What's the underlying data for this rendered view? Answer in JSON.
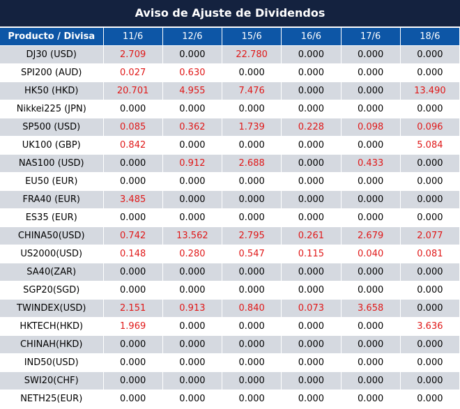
{
  "title": "Aviso de Ajuste de Dividendos",
  "header": {
    "product_label": "Producto / Divisa",
    "dates": [
      "11/6",
      "12/6",
      "15/6",
      "16/6",
      "17/6",
      "18/6"
    ]
  },
  "colors": {
    "title_bg": "#14223f",
    "header_bg": "#0d56a6",
    "stripe": "#d5d9e0",
    "positive": "#e01818"
  },
  "rows": [
    {
      "name": "DJ30 (USD)",
      "values": [
        "2.709",
        "0.000",
        "22.780",
        "0.000",
        "0.000",
        "0.000"
      ]
    },
    {
      "name": "SPI200 (AUD)",
      "values": [
        "0.027",
        "0.630",
        "0.000",
        "0.000",
        "0.000",
        "0.000"
      ]
    },
    {
      "name": "HK50 (HKD)",
      "values": [
        "20.701",
        "4.955",
        "7.476",
        "0.000",
        "0.000",
        "13.490"
      ]
    },
    {
      "name": "Nikkei225 (JPN)",
      "values": [
        "0.000",
        "0.000",
        "0.000",
        "0.000",
        "0.000",
        "0.000"
      ]
    },
    {
      "name": "SP500 (USD)",
      "values": [
        "0.085",
        "0.362",
        "1.739",
        "0.228",
        "0.098",
        "0.096"
      ]
    },
    {
      "name": "UK100 (GBP)",
      "values": [
        "0.842",
        "0.000",
        "0.000",
        "0.000",
        "0.000",
        "5.084"
      ]
    },
    {
      "name": "NAS100 (USD)",
      "values": [
        "0.000",
        "0.912",
        "2.688",
        "0.000",
        "0.433",
        "0.000"
      ]
    },
    {
      "name": "EU50 (EUR)",
      "values": [
        "0.000",
        "0.000",
        "0.000",
        "0.000",
        "0.000",
        "0.000"
      ]
    },
    {
      "name": "FRA40 (EUR)",
      "values": [
        "3.485",
        "0.000",
        "0.000",
        "0.000",
        "0.000",
        "0.000"
      ]
    },
    {
      "name": "ES35 (EUR)",
      "values": [
        "0.000",
        "0.000",
        "0.000",
        "0.000",
        "0.000",
        "0.000"
      ]
    },
    {
      "name": "CHINA50(USD)",
      "values": [
        "0.742",
        "13.562",
        "2.795",
        "0.261",
        "2.679",
        "2.077"
      ]
    },
    {
      "name": "US2000(USD)",
      "values": [
        "0.148",
        "0.280",
        "0.547",
        "0.115",
        "0.040",
        "0.081"
      ]
    },
    {
      "name": "SA40(ZAR)",
      "values": [
        "0.000",
        "0.000",
        "0.000",
        "0.000",
        "0.000",
        "0.000"
      ]
    },
    {
      "name": "SGP20(SGD)",
      "values": [
        "0.000",
        "0.000",
        "0.000",
        "0.000",
        "0.000",
        "0.000"
      ]
    },
    {
      "name": "TWINDEX(USD)",
      "values": [
        "2.151",
        "0.913",
        "0.840",
        "0.073",
        "3.658",
        "0.000"
      ]
    },
    {
      "name": "HKTECH(HKD)",
      "values": [
        "1.969",
        "0.000",
        "0.000",
        "0.000",
        "0.000",
        "3.636"
      ]
    },
    {
      "name": "CHINAH(HKD)",
      "values": [
        "0.000",
        "0.000",
        "0.000",
        "0.000",
        "0.000",
        "0.000"
      ]
    },
    {
      "name": "IND50(USD)",
      "values": [
        "0.000",
        "0.000",
        "0.000",
        "0.000",
        "0.000",
        "0.000"
      ]
    },
    {
      "name": "SWI20(CHF)",
      "values": [
        "0.000",
        "0.000",
        "0.000",
        "0.000",
        "0.000",
        "0.000"
      ]
    },
    {
      "name": "NETH25(EUR)",
      "values": [
        "0.000",
        "0.000",
        "0.000",
        "0.000",
        "0.000",
        "0.000"
      ]
    }
  ]
}
